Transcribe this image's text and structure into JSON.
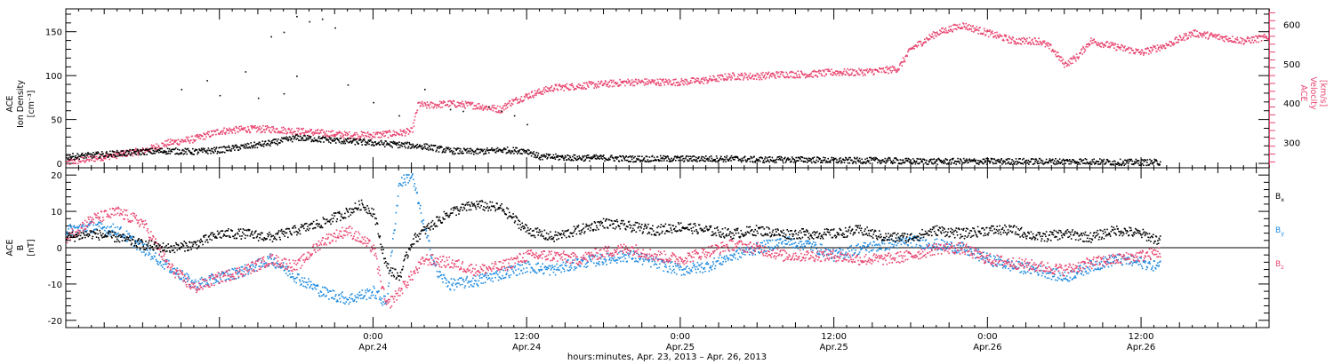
{
  "colors": {
    "black": "#000000",
    "pink": "#e8456f",
    "blue": "#1f8be0"
  },
  "chart_data": [
    {
      "type": "scatter",
      "panel": "top",
      "x_unit": "hours since 0:00 Apr.23, 2013",
      "xlim": [
        0,
        94
      ],
      "ylabel_left": [
        "ACE",
        "Ion Density",
        "[cm⁻³]"
      ],
      "ylabel_right": [
        "ACE",
        "Velocity",
        "[km/s]"
      ],
      "ylim_left": [
        -5,
        176
      ],
      "ylim_right": [
        235,
        640
      ],
      "yticks_left": [
        0,
        50,
        100,
        150
      ],
      "yticks_right": [
        300,
        400,
        500,
        600
      ],
      "series": [
        {
          "axis": "left",
          "color": "black",
          "points": [
            [
              0,
              8
            ],
            [
              2,
              10
            ],
            [
              4,
              12
            ],
            [
              6,
              14
            ],
            [
              8,
              15
            ],
            [
              10,
              14
            ],
            [
              12,
              16
            ],
            [
              14,
              20
            ],
            [
              16,
              24
            ],
            [
              18,
              30
            ],
            [
              20,
              28
            ],
            [
              22,
              26
            ],
            [
              24,
              24
            ],
            [
              26,
              22
            ],
            [
              28,
              20
            ],
            [
              30,
              15
            ],
            [
              32,
              14
            ],
            [
              34,
              16
            ],
            [
              36,
              15
            ],
            [
              37,
              8
            ],
            [
              38,
              8
            ],
            [
              40,
              7
            ],
            [
              42,
              7
            ],
            [
              44,
              6
            ],
            [
              46,
              6
            ],
            [
              48,
              6
            ],
            [
              50,
              6
            ],
            [
              52,
              6
            ],
            [
              54,
              5
            ],
            [
              56,
              5
            ],
            [
              58,
              5
            ],
            [
              60,
              4
            ],
            [
              62,
              4
            ],
            [
              64,
              4
            ],
            [
              66,
              3
            ],
            [
              68,
              3
            ],
            [
              70,
              3
            ],
            [
              72,
              3
            ],
            [
              74,
              3
            ],
            [
              76,
              3
            ],
            [
              78,
              3
            ],
            [
              80,
              3
            ],
            [
              82,
              2
            ],
            [
              84,
              2
            ],
            [
              85.5,
              2
            ]
          ],
          "outliers": [
            [
              9,
              85
            ],
            [
              11,
              95
            ],
            [
              14,
              105
            ],
            [
              16,
              145
            ],
            [
              17,
              150
            ],
            [
              18,
              168
            ],
            [
              19,
              162
            ],
            [
              20,
              165
            ],
            [
              21,
              155
            ],
            [
              18,
              100
            ],
            [
              17,
              80
            ],
            [
              12,
              78
            ],
            [
              15,
              75
            ],
            [
              22,
              90
            ],
            [
              24,
              70
            ],
            [
              28,
              85
            ],
            [
              30,
              62
            ],
            [
              26,
              55
            ],
            [
              31,
              60
            ],
            [
              33,
              65
            ],
            [
              34,
              60
            ],
            [
              35,
              55
            ],
            [
              36,
              45
            ]
          ]
        },
        {
          "axis": "right",
          "color": "pink",
          "points": [
            [
              0,
              250
            ],
            [
              2,
              260
            ],
            [
              4,
              270
            ],
            [
              6,
              280
            ],
            [
              8,
              300
            ],
            [
              10,
              310
            ],
            [
              12,
              330
            ],
            [
              14,
              335
            ],
            [
              16,
              335
            ],
            [
              18,
              330
            ],
            [
              20,
              325
            ],
            [
              22,
              320
            ],
            [
              24,
              320
            ],
            [
              26,
              325
            ],
            [
              27,
              330
            ],
            [
              27.5,
              400
            ],
            [
              28,
              395
            ],
            [
              30,
              400
            ],
            [
              32,
              395
            ],
            [
              34,
              385
            ],
            [
              34.5,
              400
            ],
            [
              36,
              420
            ],
            [
              38,
              440
            ],
            [
              40,
              445
            ],
            [
              42,
              450
            ],
            [
              44,
              455
            ],
            [
              46,
              455
            ],
            [
              48,
              455
            ],
            [
              50,
              460
            ],
            [
              52,
              470
            ],
            [
              54,
              470
            ],
            [
              56,
              475
            ],
            [
              58,
              475
            ],
            [
              60,
              480
            ],
            [
              62,
              480
            ],
            [
              64,
              485
            ],
            [
              65,
              490
            ],
            [
              66,
              540
            ],
            [
              68,
              580
            ],
            [
              70,
              600
            ],
            [
              72,
              580
            ],
            [
              74,
              560
            ],
            [
              76,
              560
            ],
            [
              77,
              540
            ],
            [
              78,
              500
            ],
            [
              79,
              520
            ],
            [
              80,
              560
            ],
            [
              82,
              545
            ],
            [
              84,
              530
            ],
            [
              86,
              550
            ],
            [
              88,
              580
            ],
            [
              90,
              570
            ],
            [
              92,
              560
            ],
            [
              94,
              570
            ]
          ]
        }
      ]
    },
    {
      "type": "scatter",
      "panel": "bottom",
      "x_unit": "hours since 0:00 Apr.23, 2013",
      "xlim": [
        0,
        94
      ],
      "ylabel": [
        "ACE",
        "B",
        "[nT]"
      ],
      "ylim": [
        -22,
        22
      ],
      "yticks": [
        -20,
        -10,
        0,
        10,
        20
      ],
      "legend": [
        "B_x",
        "B_y",
        "B_z"
      ],
      "legend_position": "right",
      "series": [
        {
          "name": "Bx",
          "color": "black",
          "points": [
            [
              0,
              3
            ],
            [
              2,
              4
            ],
            [
              4,
              3
            ],
            [
              6,
              1
            ],
            [
              8,
              0
            ],
            [
              10,
              1
            ],
            [
              12,
              4
            ],
            [
              14,
              4
            ],
            [
              16,
              3
            ],
            [
              18,
              5
            ],
            [
              20,
              7
            ],
            [
              22,
              10
            ],
            [
              23,
              12
            ],
            [
              24,
              10
            ],
            [
              25,
              -5
            ],
            [
              26,
              -8
            ],
            [
              27,
              2
            ],
            [
              28,
              5
            ],
            [
              30,
              10
            ],
            [
              32,
              12
            ],
            [
              34,
              11
            ],
            [
              35,
              8
            ],
            [
              36,
              5
            ],
            [
              38,
              3
            ],
            [
              40,
              5
            ],
            [
              42,
              7
            ],
            [
              44,
              6
            ],
            [
              46,
              5
            ],
            [
              48,
              6
            ],
            [
              50,
              5
            ],
            [
              52,
              4
            ],
            [
              54,
              5
            ],
            [
              56,
              4
            ],
            [
              58,
              4
            ],
            [
              60,
              4
            ],
            [
              62,
              5
            ],
            [
              64,
              3
            ],
            [
              66,
              3
            ],
            [
              68,
              5
            ],
            [
              70,
              4
            ],
            [
              72,
              5
            ],
            [
              74,
              5
            ],
            [
              76,
              3
            ],
            [
              78,
              4
            ],
            [
              80,
              3
            ],
            [
              82,
              5
            ],
            [
              84,
              4
            ],
            [
              85.5,
              2
            ]
          ]
        },
        {
          "name": "By",
          "color": "blue",
          "points": [
            [
              0,
              5
            ],
            [
              2,
              6
            ],
            [
              4,
              5
            ],
            [
              6,
              0
            ],
            [
              8,
              -5
            ],
            [
              10,
              -10
            ],
            [
              12,
              -8
            ],
            [
              14,
              -6
            ],
            [
              16,
              -3
            ],
            [
              18,
              -8
            ],
            [
              20,
              -12
            ],
            [
              22,
              -14
            ],
            [
              24,
              -12
            ],
            [
              25,
              -15
            ],
            [
              26,
              18
            ],
            [
              27,
              20
            ],
            [
              28,
              5
            ],
            [
              29,
              -7
            ],
            [
              30,
              -10
            ],
            [
              32,
              -9
            ],
            [
              34,
              -7
            ],
            [
              36,
              -5
            ],
            [
              38,
              -6
            ],
            [
              40,
              -4
            ],
            [
              42,
              -3
            ],
            [
              44,
              -2
            ],
            [
              46,
              -4
            ],
            [
              48,
              -6
            ],
            [
              50,
              -5
            ],
            [
              52,
              -2
            ],
            [
              54,
              0
            ],
            [
              56,
              2
            ],
            [
              58,
              1
            ],
            [
              60,
              -2
            ],
            [
              62,
              0
            ],
            [
              64,
              1
            ],
            [
              66,
              2
            ],
            [
              68,
              1
            ],
            [
              70,
              0
            ],
            [
              72,
              -3
            ],
            [
              74,
              -5
            ],
            [
              76,
              -6
            ],
            [
              78,
              -8
            ],
            [
              80,
              -5
            ],
            [
              82,
              -3
            ],
            [
              84,
              -4
            ],
            [
              85.5,
              -5
            ]
          ]
        },
        {
          "name": "Bz",
          "color": "pink",
          "points": [
            [
              0,
              3
            ],
            [
              2,
              8
            ],
            [
              4,
              10
            ],
            [
              6,
              7
            ],
            [
              8,
              -5
            ],
            [
              10,
              -11
            ],
            [
              12,
              -8
            ],
            [
              14,
              -6
            ],
            [
              16,
              -3
            ],
            [
              18,
              -5
            ],
            [
              20,
              2
            ],
            [
              22,
              5
            ],
            [
              24,
              0
            ],
            [
              25,
              -16
            ],
            [
              26,
              -12
            ],
            [
              28,
              -3
            ],
            [
              30,
              -4
            ],
            [
              32,
              -6
            ],
            [
              34,
              -5
            ],
            [
              36,
              -2
            ],
            [
              38,
              -2
            ],
            [
              40,
              -3
            ],
            [
              42,
              -1
            ],
            [
              44,
              0
            ],
            [
              46,
              -2
            ],
            [
              48,
              -3
            ],
            [
              50,
              -1
            ],
            [
              52,
              1
            ],
            [
              54,
              0
            ],
            [
              56,
              -2
            ],
            [
              58,
              -2
            ],
            [
              60,
              -2
            ],
            [
              62,
              -3
            ],
            [
              64,
              -3
            ],
            [
              66,
              -2
            ],
            [
              68,
              0
            ],
            [
              70,
              0
            ],
            [
              72,
              -3
            ],
            [
              74,
              -4
            ],
            [
              76,
              -5
            ],
            [
              78,
              -6
            ],
            [
              80,
              -4
            ],
            [
              82,
              -3
            ],
            [
              84,
              -2
            ],
            [
              85.5,
              -1
            ]
          ]
        }
      ]
    }
  ],
  "x_axis": {
    "ticks": [
      {
        "x": 24,
        "time": "0:00",
        "date": "Apr.24"
      },
      {
        "x": 36,
        "time": "12:00",
        "date": "Apr.24"
      },
      {
        "x": 48,
        "time": "0:00",
        "date": "Apr.25"
      },
      {
        "x": 60,
        "time": "12:00",
        "date": "Apr.25"
      },
      {
        "x": 72,
        "time": "0:00",
        "date": "Apr.26"
      },
      {
        "x": 84,
        "time": "12:00",
        "date": "Apr.26"
      }
    ],
    "label": "hours:minutes, Apr. 23, 2013 – Apr. 26, 2013"
  },
  "legend_labels": {
    "bx": "B",
    "bx_sub": "x",
    "by": "B",
    "by_sub": "y",
    "bz": "B",
    "bz_sub": "z"
  }
}
